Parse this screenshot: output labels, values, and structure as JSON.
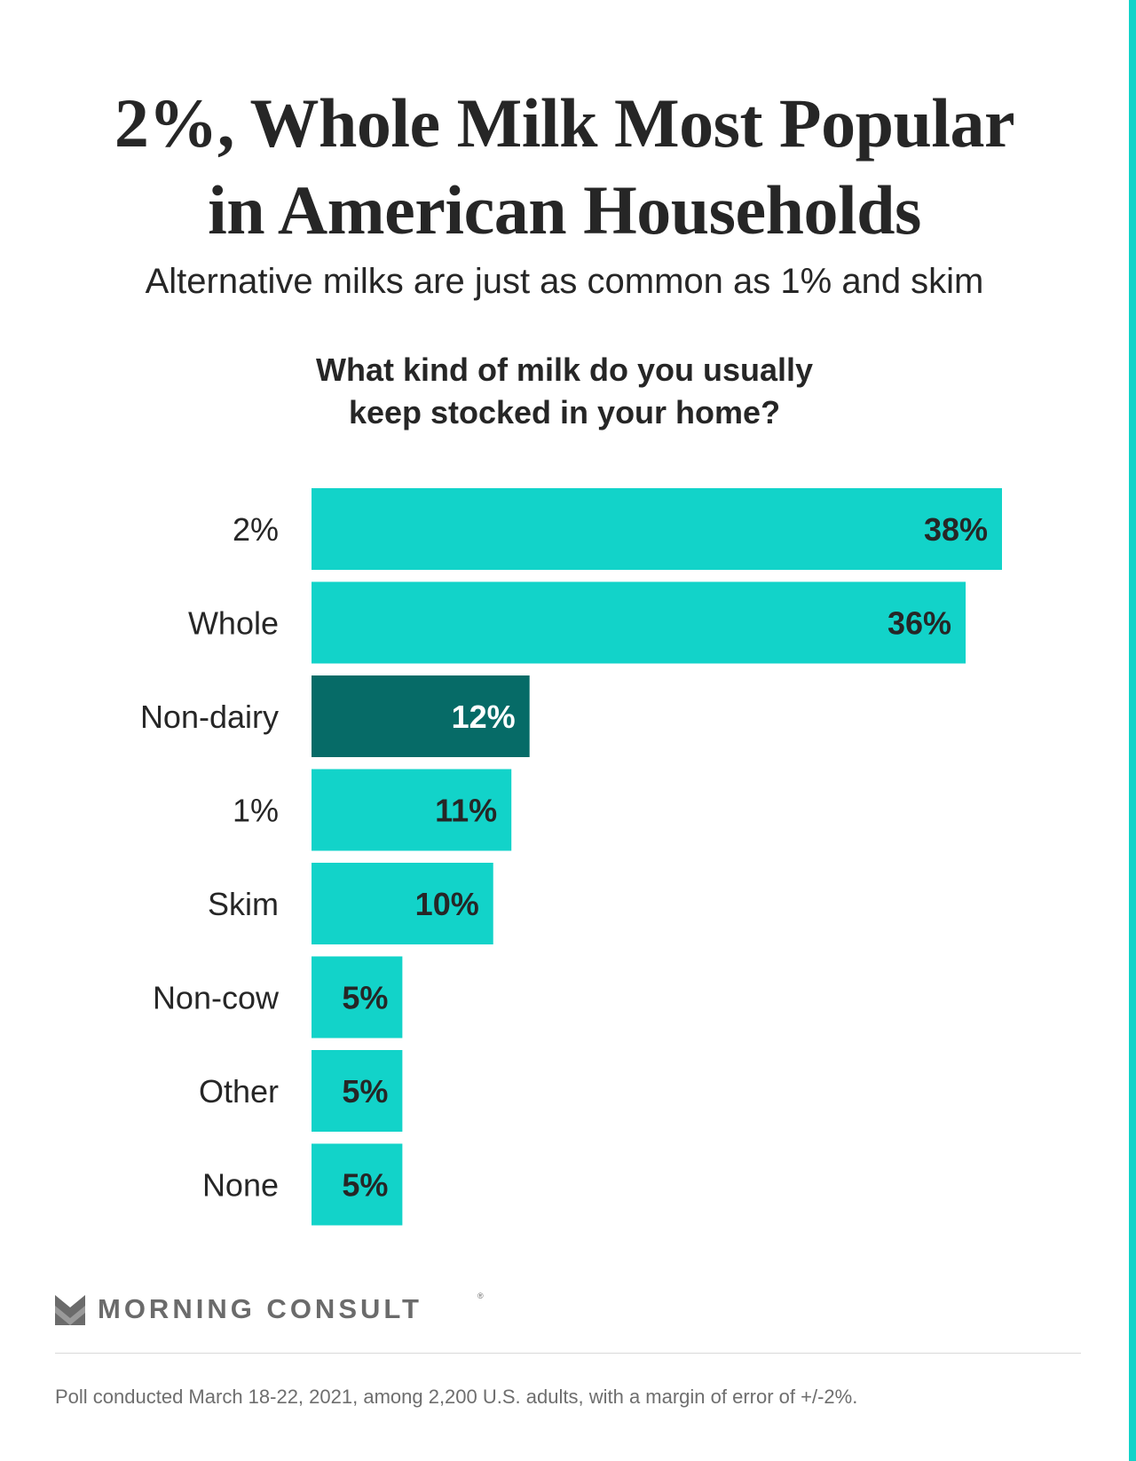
{
  "header": {
    "title_line1": "2%, Whole Milk Most Popular",
    "title_line2": "in American Households",
    "subtitle": "Alternative milks are just as common as 1% and skim",
    "question_line1": "What kind of milk do you usually",
    "question_line2": "keep stocked in your home?"
  },
  "chart_data": {
    "type": "bar",
    "orientation": "horizontal",
    "title": "What kind of milk do you usually keep stocked in your home?",
    "categories": [
      "2%",
      "Whole",
      "Non-dairy",
      "1%",
      "Skim",
      "Non-cow",
      "Other",
      "None"
    ],
    "values": [
      38,
      36,
      12,
      11,
      10,
      5,
      5,
      5
    ],
    "value_labels": [
      "38%",
      "36%",
      "12%",
      "11%",
      "10%",
      "5%",
      "5%",
      "5%"
    ],
    "unit": "%",
    "highlight_category": "Non-dairy",
    "colors": {
      "bar": "#12d3c9",
      "highlight": "#066b67",
      "label_on_bar": "#262626",
      "label_on_highlight": "#ffffff"
    },
    "xlim": [
      0,
      38
    ],
    "grid": false,
    "legend": "none"
  },
  "branding": {
    "logo_text": "MORNING CONSULT",
    "logo_registered": "®",
    "logo_icon": "morning-consult-m-icon"
  },
  "footer": {
    "note": "Poll conducted March 18-22, 2021, among 2,200 U.S. adults, with a margin of error of +/-2%."
  },
  "theme": {
    "accent": "#12d3c9",
    "text": "#262626",
    "muted": "#6b6b6b"
  }
}
